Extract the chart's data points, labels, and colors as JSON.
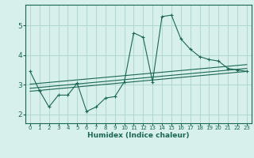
{
  "xlabel": "Humidex (Indice chaleur)",
  "bg_color": "#d8f0ec",
  "grid_color": "#b0d8d0",
  "line_color": "#1a6655",
  "xlim": [
    -0.5,
    23.5
  ],
  "ylim": [
    1.7,
    5.7
  ],
  "xticks": [
    0,
    1,
    2,
    3,
    4,
    5,
    6,
    7,
    8,
    9,
    10,
    11,
    12,
    13,
    14,
    15,
    16,
    17,
    18,
    19,
    20,
    21,
    22,
    23
  ],
  "yticks": [
    2,
    3,
    4,
    5
  ],
  "line1_x": [
    0,
    1,
    2,
    3,
    4,
    5,
    6,
    7,
    8,
    9,
    10,
    11,
    12,
    13,
    14,
    15,
    16,
    17,
    18,
    19,
    20,
    21,
    22,
    23
  ],
  "line1_y": [
    3.45,
    2.8,
    2.25,
    2.65,
    2.65,
    3.05,
    2.1,
    2.25,
    2.55,
    2.6,
    3.1,
    4.75,
    4.6,
    3.1,
    5.3,
    5.35,
    4.55,
    4.2,
    3.95,
    3.85,
    3.8,
    3.55,
    3.5,
    3.45
  ],
  "line2_x": [
    0,
    23
  ],
  "line2_y": [
    2.78,
    3.45
  ],
  "line3_x": [
    0,
    23
  ],
  "line3_y": [
    2.88,
    3.55
  ],
  "line4_x": [
    0,
    23
  ],
  "line4_y": [
    3.02,
    3.68
  ]
}
